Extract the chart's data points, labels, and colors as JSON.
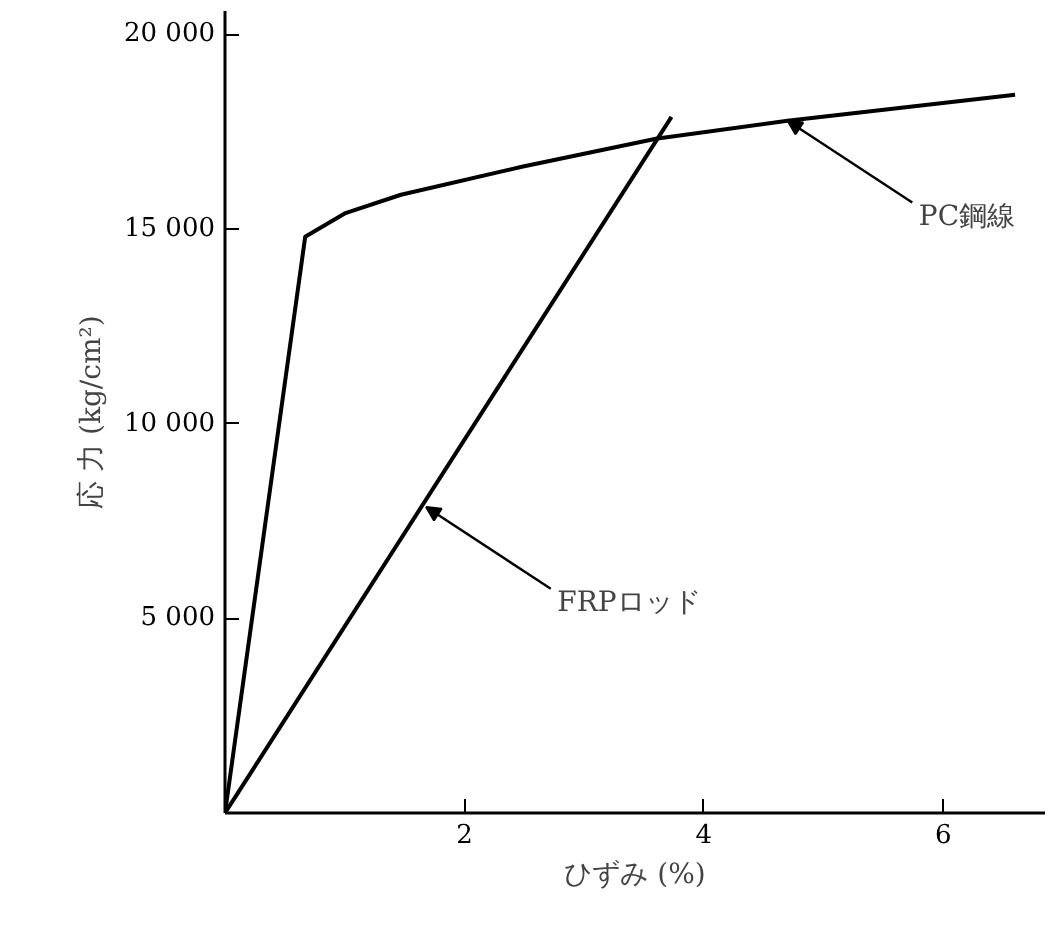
{
  "chart_data": {
    "type": "line",
    "xlabel": "ひずみ (%)",
    "ylabel": "応 力 (kg/cm²)",
    "xlim": [
      0,
      6.85
    ],
    "ylim": [
      0,
      20600
    ],
    "xticks": [
      2,
      4,
      6
    ],
    "yticks": [
      {
        "value": 5000,
        "label": "5 000"
      },
      {
        "value": 10000,
        "label": "10 000"
      },
      {
        "value": 15000,
        "label": "15 000"
      },
      {
        "value": 20000,
        "label": "20 000"
      }
    ],
    "series": [
      {
        "color": "#000000",
        "x": [
          0,
          0.67,
          1.0,
          1.47,
          2.48,
          3.6,
          4.7,
          6.6
        ],
        "values": [
          0,
          14800,
          15400,
          15880,
          16600,
          17320,
          17780,
          18450
        ]
      },
      {
        "color": "#000000",
        "x": [
          0,
          3.73
        ],
        "values": [
          0,
          17880
        ]
      }
    ],
    "annotations": [
      {
        "text": "PC鋼線",
        "x": 4.7,
        "y": 17780
      },
      {
        "text": "FRPロッド",
        "x": 1.68,
        "y": 7860
      }
    ],
    "grid": false,
    "marker": "none",
    "line_style": "solid"
  }
}
